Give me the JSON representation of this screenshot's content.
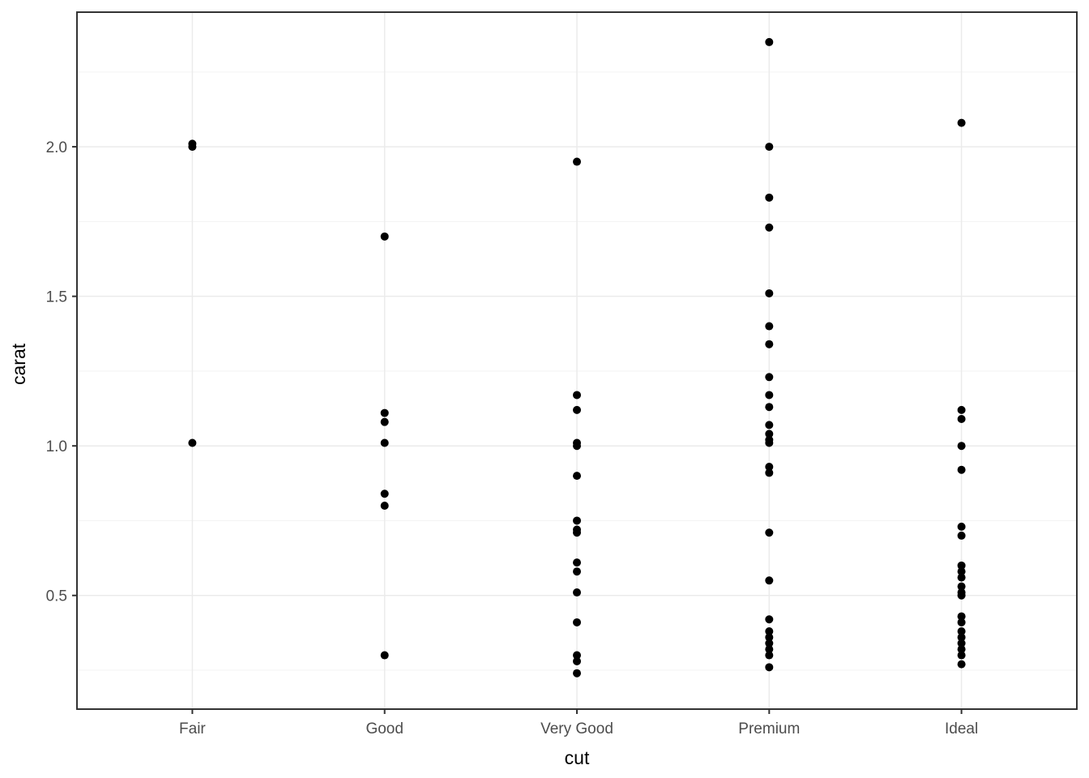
{
  "chart_data": {
    "type": "scatter",
    "subtype": "strip-plot",
    "title": "",
    "xlabel": "cut",
    "ylabel": "carat",
    "categories": [
      "Fair",
      "Good",
      "Very Good",
      "Premium",
      "Ideal"
    ],
    "y_tick_labels": [
      "0.5",
      "1.0",
      "1.5",
      "2.0"
    ],
    "y_tick_values": [
      0.5,
      1.0,
      1.5,
      2.0
    ],
    "y_minor_tick_values": [
      0.25,
      0.75,
      1.25,
      1.75,
      2.25
    ],
    "ylim": [
      0.12,
      2.45
    ],
    "legend_position": "none",
    "grid": "on",
    "series": [
      {
        "name": "Fair",
        "values": [
          2.01,
          2.0,
          1.01
        ]
      },
      {
        "name": "Good",
        "values": [
          1.7,
          1.11,
          1.08,
          1.01,
          0.84,
          0.8,
          0.3
        ]
      },
      {
        "name": "Very Good",
        "values": [
          1.95,
          1.17,
          1.12,
          1.01,
          1.0,
          0.9,
          0.75,
          0.72,
          0.71,
          0.61,
          0.58,
          0.51,
          0.41,
          0.3,
          0.28,
          0.24
        ]
      },
      {
        "name": "Premium",
        "values": [
          2.35,
          2.0,
          1.83,
          1.73,
          1.51,
          1.4,
          1.34,
          1.23,
          1.17,
          1.13,
          1.07,
          1.04,
          1.02,
          1.01,
          0.93,
          0.91,
          0.71,
          0.55,
          0.42,
          0.38,
          0.36,
          0.34,
          0.32,
          0.3,
          0.26
        ]
      },
      {
        "name": "Ideal",
        "values": [
          2.08,
          1.12,
          1.09,
          1.0,
          0.92,
          0.73,
          0.7,
          0.6,
          0.58,
          0.56,
          0.53,
          0.51,
          0.5,
          0.43,
          0.41,
          0.38,
          0.36,
          0.34,
          0.32,
          0.3,
          0.27
        ]
      }
    ],
    "colors": {
      "point": "#000000",
      "grid_major": "#EBEBEB",
      "grid_minor": "#F3F3F3",
      "panel_border": "#333333",
      "tick_mark": "#333333",
      "tick_label": "#4D4D4D",
      "axis_title": "#000000",
      "background": "#FFFFFF"
    }
  }
}
